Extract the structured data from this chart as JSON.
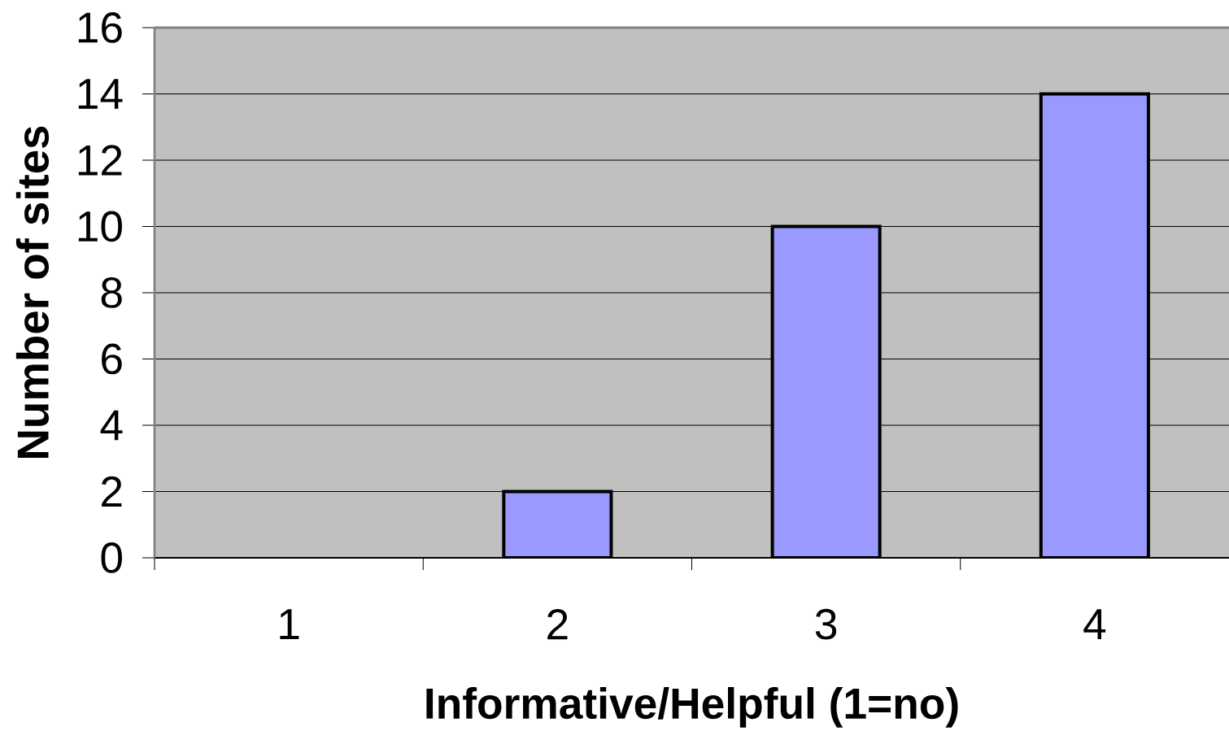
{
  "chart_data": {
    "type": "bar",
    "xlabel": "Informative/Helpful (1=no)",
    "ylabel": "Number of sites",
    "categories": [
      "1",
      "2",
      "3",
      "4"
    ],
    "values": [
      0,
      2,
      10,
      14
    ],
    "color": "#9999ff",
    "ylim": [
      0,
      16
    ],
    "yticks": [
      0,
      2,
      4,
      6,
      8,
      10,
      12,
      14,
      16
    ],
    "grid": "y"
  }
}
